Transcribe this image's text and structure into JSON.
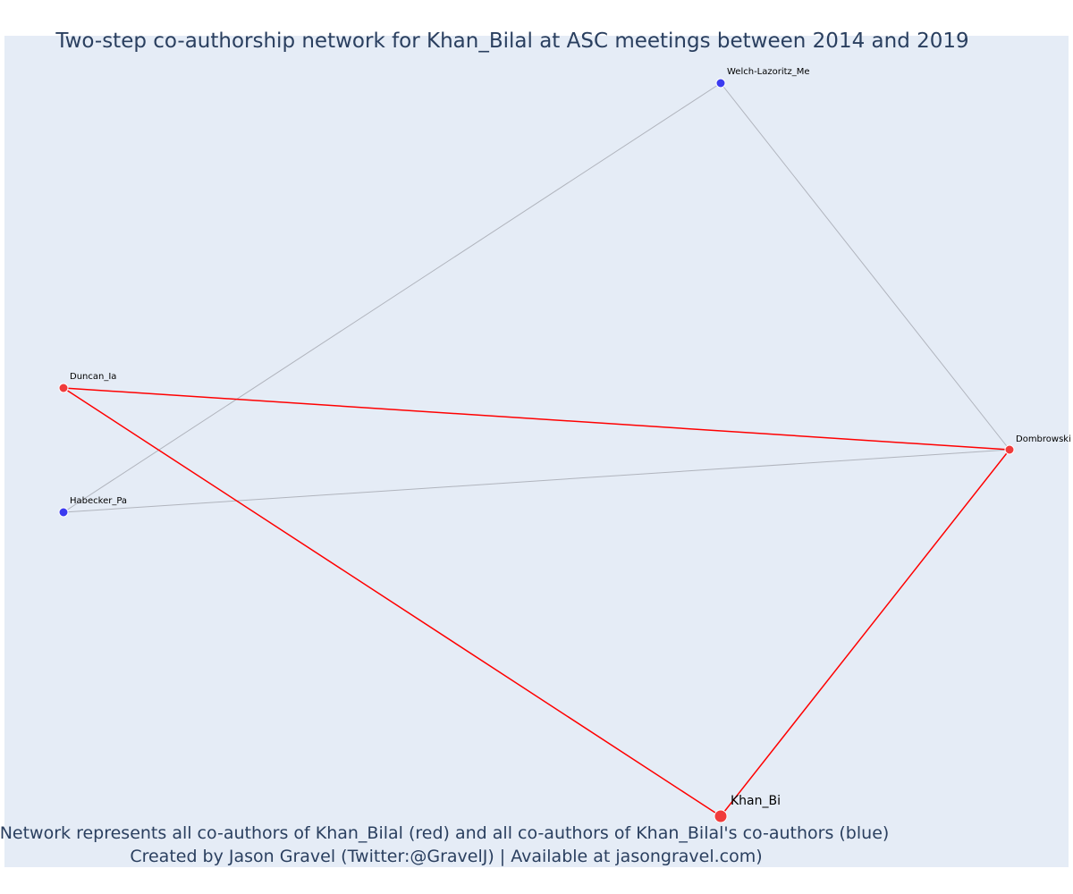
{
  "header": {
    "title": "Two-step co-authorship network for Khan_Bilal at ASC meetings between 2014 and 2019"
  },
  "nodes": [
    {
      "label": "Welch-Lazoritz_Me"
    },
    {
      "label": "Duncan_Ia"
    },
    {
      "label": "Habecker_Pa"
    },
    {
      "label": "Dombrowski"
    },
    {
      "label": "Khan_Bi"
    }
  ],
  "footer": {
    "lines": [
      "Network represents all co-authors of Khan_Bilal (red) and all co-authors of Khan_Bilal's co-authors (blue)",
      "Created by Jason Gravel (Twitter:@GravelJ) | Available at jasongravel.com)"
    ]
  }
}
